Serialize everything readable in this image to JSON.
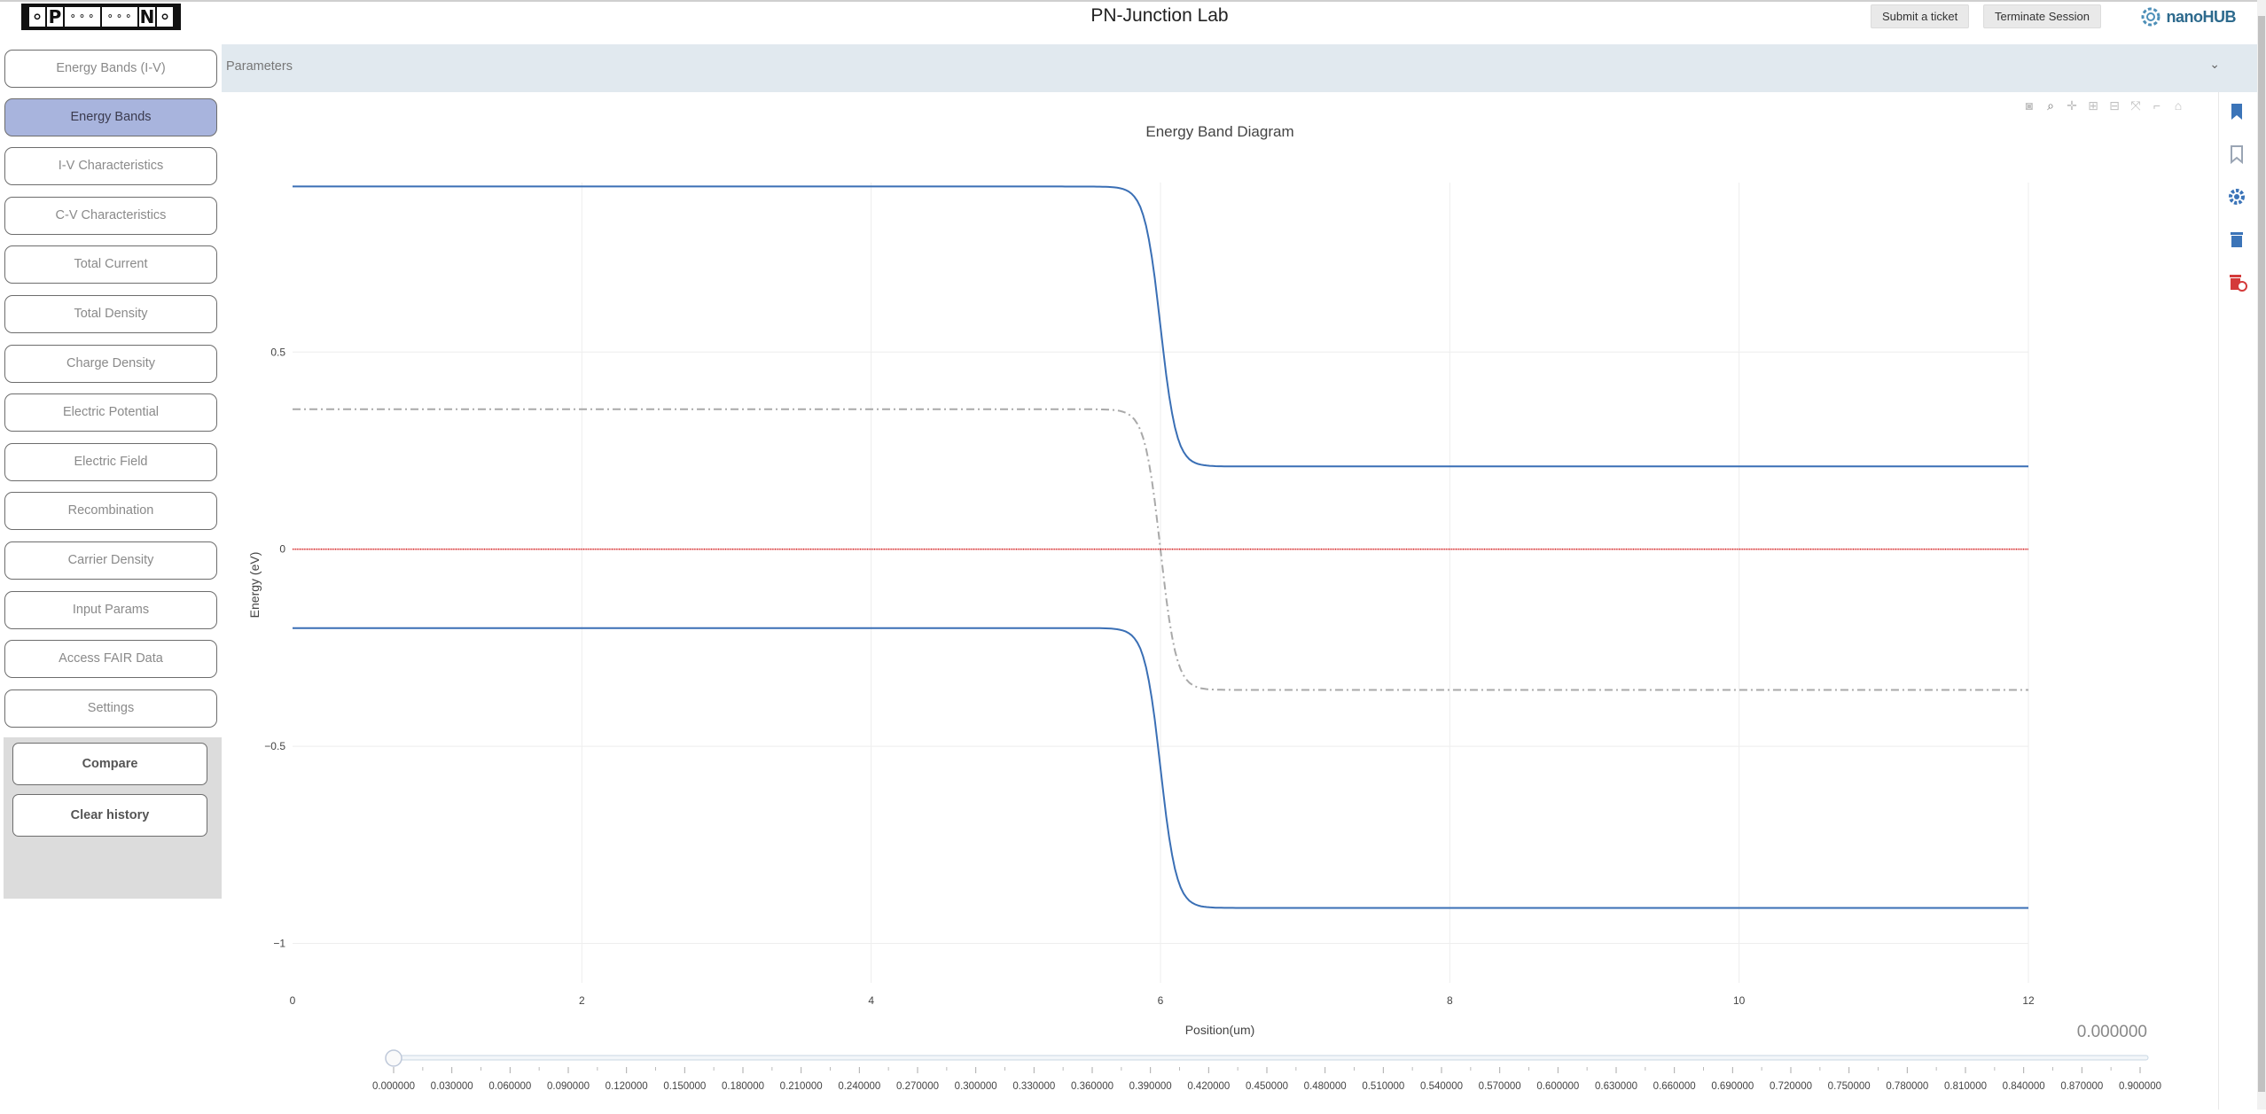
{
  "app": {
    "title": "PN-Junction Lab",
    "logo_letters": [
      "P",
      "N"
    ],
    "submit_ticket": "Submit a ticket",
    "terminate_session": "Terminate Session",
    "brand": "nanoHUB"
  },
  "sidebar": {
    "items": [
      {
        "label": "Energy Bands (I-V)",
        "active": false
      },
      {
        "label": "Energy Bands",
        "active": true
      },
      {
        "label": "I-V Characteristics",
        "active": false
      },
      {
        "label": "C-V Characteristics",
        "active": false
      },
      {
        "label": "Total Current",
        "active": false
      },
      {
        "label": "Total Density",
        "active": false
      },
      {
        "label": "Charge Density",
        "active": false
      },
      {
        "label": "Electric Potential",
        "active": false
      },
      {
        "label": "Electric Field",
        "active": false
      },
      {
        "label": "Recombination",
        "active": false
      },
      {
        "label": "Carrier Density",
        "active": false
      },
      {
        "label": "Input Params",
        "active": false
      },
      {
        "label": "Access FAIR Data",
        "active": false
      },
      {
        "label": "Settings",
        "active": false
      }
    ],
    "compare": "Compare",
    "clear_history": "Clear history"
  },
  "parameters": {
    "label": "Parameters",
    "chevron": "⌄"
  },
  "chart_data": {
    "type": "line",
    "title": "Energy Band Diagram",
    "xlabel": "Position(um)",
    "ylabel": "Energy (eV)",
    "xlim": [
      0,
      12
    ],
    "ylim": [
      -1.1,
      0.93
    ],
    "xticks": [
      0,
      2,
      4,
      6,
      8,
      10,
      12
    ],
    "yticks": [
      0.5,
      0,
      -0.5,
      -1
    ],
    "ytick_labels": [
      "0.5",
      "0",
      "−0.5",
      "−1"
    ],
    "grid": true,
    "junction_position": 6.0,
    "series": [
      {
        "role": "conduction",
        "color": "#3a6fb5",
        "dash": "solid",
        "left": 0.92,
        "right": 0.21
      },
      {
        "role": "intrinsic",
        "color": "#a9a9a9",
        "dash": "dashdot",
        "left": 0.355,
        "right": -0.357
      },
      {
        "role": "fermi",
        "color": "#d62728",
        "dash": "solid",
        "left": 0.0,
        "right": 0.0
      },
      {
        "role": "valence",
        "color": "#3a6fb5",
        "dash": "solid",
        "left": -0.2,
        "right": -0.91
      }
    ]
  },
  "slider": {
    "value_display": "0.000000",
    "value": 0,
    "min": 0,
    "max": 0.9,
    "labels": [
      "0.000000",
      "0.030000",
      "0.060000",
      "0.090000",
      "0.120000",
      "0.150000",
      "0.180000",
      "0.210000",
      "0.240000",
      "0.270000",
      "0.300000",
      "0.330000",
      "0.360000",
      "0.390000",
      "0.420000",
      "0.450000",
      "0.480000",
      "0.510000",
      "0.540000",
      "0.570000",
      "0.600000",
      "0.630000",
      "0.660000",
      "0.690000",
      "0.720000",
      "0.750000",
      "0.780000",
      "0.810000",
      "0.840000",
      "0.870000",
      "0.900000"
    ]
  },
  "modebar": [
    "camera-icon",
    "zoom-icon",
    "pan-icon",
    "zoom-in-icon",
    "zoom-out-icon",
    "autoscale-icon",
    "reset-axes-icon",
    "home-icon"
  ],
  "right_tools": [
    "bookmark-filled-icon",
    "bookmark-outline-icon",
    "gear-icon",
    "trash-icon",
    "trash-clock-icon"
  ],
  "colors": {
    "accent_active": "#a8b4dd",
    "params_bg": "#e1e9ef",
    "band": "#3a6fb5",
    "fermi": "#d62728"
  }
}
